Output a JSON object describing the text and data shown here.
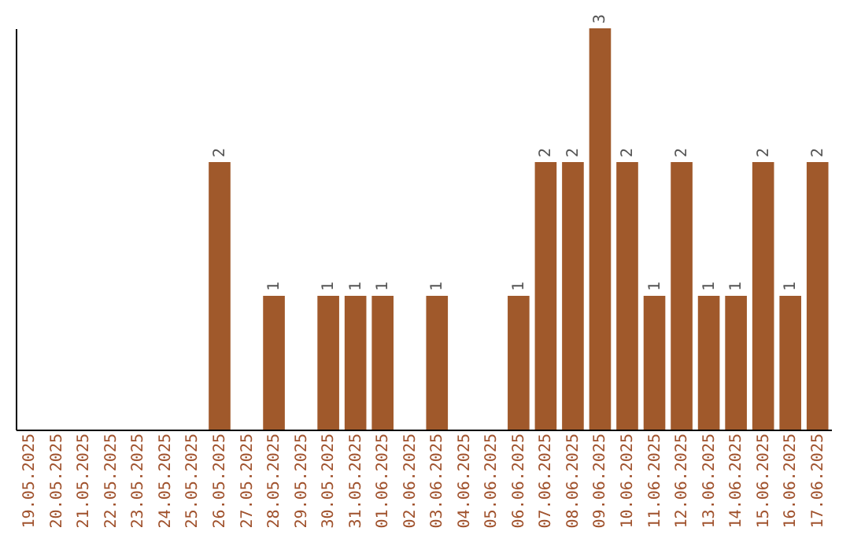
{
  "chart_data": {
    "type": "bar",
    "categories": [
      "19.05.2025",
      "20.05.2025",
      "21.05.2025",
      "22.05.2025",
      "23.05.2025",
      "24.05.2025",
      "25.05.2025",
      "26.05.2025",
      "27.05.2025",
      "28.05.2025",
      "29.05.2025",
      "30.05.2025",
      "31.05.2025",
      "01.06.2025",
      "02.06.2025",
      "03.06.2025",
      "04.06.2025",
      "05.06.2025",
      "06.06.2025",
      "07.06.2025",
      "08.06.2025",
      "09.06.2025",
      "10.06.2025",
      "11.06.2025",
      "12.06.2025",
      "13.06.2025",
      "14.06.2025",
      "15.06.2025",
      "16.06.2025",
      "17.06.2025"
    ],
    "values": [
      0,
      0,
      0,
      0,
      0,
      0,
      0,
      2,
      0,
      1,
      0,
      1,
      1,
      1,
      0,
      1,
      0,
      0,
      1,
      2,
      2,
      3,
      2,
      1,
      2,
      1,
      1,
      2,
      1,
      2
    ],
    "value_labels": [
      null,
      null,
      null,
      null,
      null,
      null,
      null,
      "2",
      null,
      "1",
      null,
      "1",
      "1",
      "1",
      null,
      "1",
      null,
      null,
      "1",
      "2",
      "2",
      "3",
      "2",
      "1",
      "2",
      "1",
      "1",
      "2",
      "1",
      "2"
    ],
    "color": "#a0592b",
    "relative": false,
    "grid": false
  }
}
